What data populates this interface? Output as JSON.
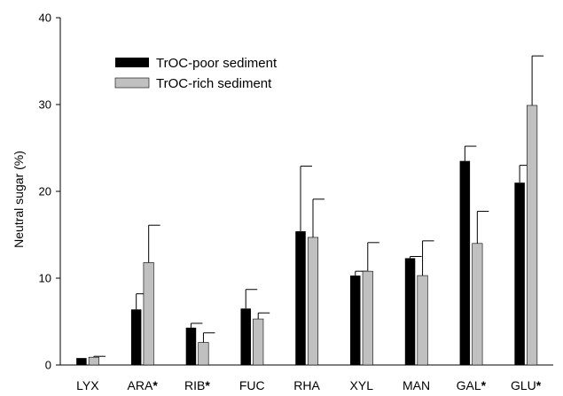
{
  "chart_data": {
    "type": "bar",
    "ylabel": "Neutral sugar (%)",
    "xlabel": "",
    "ylim": [
      0,
      40
    ],
    "yticks": [
      0,
      10,
      20,
      30,
      40
    ],
    "categories": [
      "LYX",
      "ARA",
      "RIB",
      "FUC",
      "RHA",
      "XYL",
      "MAN",
      "GAL",
      "GLU"
    ],
    "significant": [
      false,
      true,
      true,
      false,
      false,
      false,
      false,
      true,
      true
    ],
    "significance_marker": "*",
    "series": [
      {
        "name": "TrOC-poor sediment",
        "color": "#000000",
        "values": [
          0.8,
          6.4,
          4.3,
          6.5,
          15.4,
          10.3,
          12.3,
          23.5,
          21.0
        ],
        "error": [
          0.0,
          1.8,
          0.5,
          2.2,
          7.5,
          0.5,
          0.2,
          1.7,
          2.0
        ]
      },
      {
        "name": "TrOC-rich sediment",
        "color": "#c0c0c0",
        "values": [
          0.9,
          11.8,
          2.6,
          5.3,
          14.7,
          10.8,
          10.3,
          14.0,
          29.9
        ],
        "error": [
          0.1,
          4.3,
          1.1,
          0.7,
          4.4,
          3.3,
          4.0,
          3.7,
          5.7
        ]
      }
    ],
    "legend_position": "top-left"
  }
}
